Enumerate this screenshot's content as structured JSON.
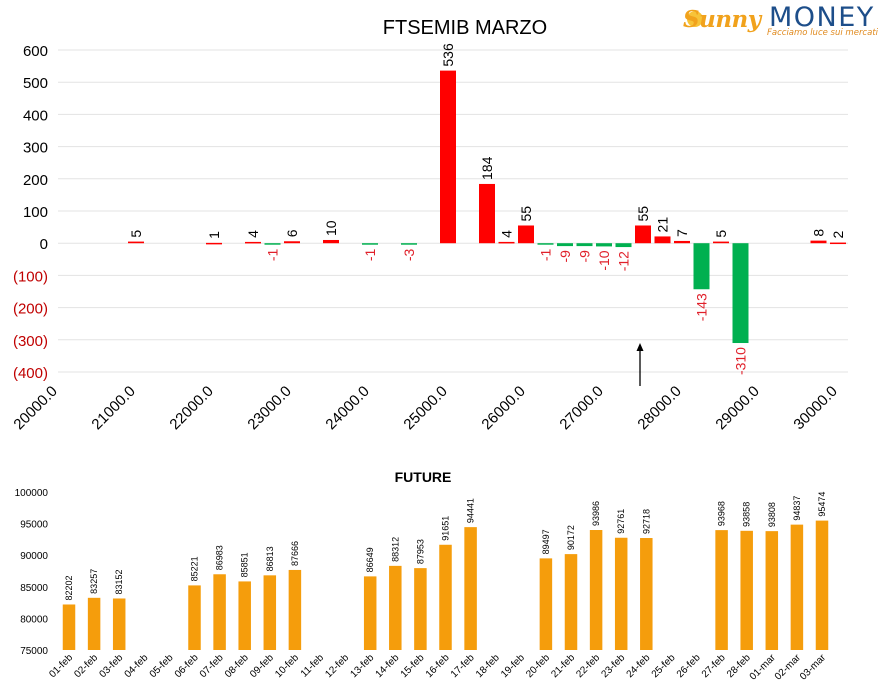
{
  "logo": {
    "brand_left": "Sunny",
    "brand_right": "MONEY",
    "tagline": "Facciamo luce sui mercati"
  },
  "colors": {
    "positive": "#ff0000",
    "negative": "#00b050",
    "future_bar": "#f59d0c",
    "negative_label": "#e0202a",
    "grid": "#e3e3e3"
  },
  "chart_data": [
    {
      "type": "bar",
      "title": "FTSEMIB MARZO",
      "x_tick_labels": [
        "20000.0",
        "21000.0",
        "22000.0",
        "23000.0",
        "24000.0",
        "25000.0",
        "26000.0",
        "27000.0",
        "28000.0",
        "29000.0",
        "30000.0"
      ],
      "xlim": [
        20000,
        30000
      ],
      "ylim": [
        -400,
        600
      ],
      "y_tick_values": [
        600,
        500,
        400,
        300,
        200,
        100,
        0,
        -100,
        -200,
        -300,
        -400
      ],
      "y_tick_labels": [
        "600",
        "500",
        "400",
        "300",
        "200",
        "100",
        "0",
        "(100)",
        "(200)",
        "(300)",
        "(400)"
      ],
      "grid": true,
      "annotation": "arrow at strike 27500 pointing upward",
      "arrow_x": 27500,
      "bars": [
        {
          "x": 21000,
          "value": 5,
          "label": "5"
        },
        {
          "x": 22000,
          "value": 1,
          "label": "1"
        },
        {
          "x": 22500,
          "value": 4,
          "label": "4"
        },
        {
          "x": 22750,
          "value": -1,
          "label": "-1"
        },
        {
          "x": 23000,
          "value": 6,
          "label": "6"
        },
        {
          "x": 23500,
          "value": 10,
          "label": "10"
        },
        {
          "x": 24000,
          "value": -1,
          "label": "-1"
        },
        {
          "x": 24500,
          "value": -3,
          "label": "-3"
        },
        {
          "x": 25000,
          "value": 536,
          "label": "536"
        },
        {
          "x": 25500,
          "value": 184,
          "label": "184"
        },
        {
          "x": 25750,
          "value": 4,
          "label": "4"
        },
        {
          "x": 26000,
          "value": 55,
          "label": "55"
        },
        {
          "x": 26250,
          "value": -1,
          "label": "-1"
        },
        {
          "x": 26500,
          "value": -9,
          "label": "-9"
        },
        {
          "x": 26750,
          "value": -9,
          "label": "-9"
        },
        {
          "x": 27000,
          "value": -10,
          "label": "-10"
        },
        {
          "x": 27250,
          "value": -12,
          "label": "-12"
        },
        {
          "x": 27500,
          "value": 55,
          "label": "55"
        },
        {
          "x": 27750,
          "value": 21,
          "label": "21"
        },
        {
          "x": 28000,
          "value": 7,
          "label": "7"
        },
        {
          "x": 28250,
          "value": -143,
          "label": "-143"
        },
        {
          "x": 28500,
          "value": 5,
          "label": "5"
        },
        {
          "x": 28750,
          "value": -310,
          "label": "-310"
        },
        {
          "x": 29750,
          "value": 8,
          "label": "8"
        },
        {
          "x": 30000,
          "value": 2,
          "label": "2"
        }
      ]
    },
    {
      "type": "bar",
      "title": "FUTURE",
      "ylim": [
        75000,
        100000
      ],
      "y_tick_labels": [
        "100000",
        "95000",
        "90000",
        "85000",
        "80000",
        "75000"
      ],
      "grid": false,
      "categories": [
        "01-feb",
        "02-feb",
        "03-feb",
        "04-feb",
        "05-feb",
        "06-feb",
        "07-feb",
        "08-feb",
        "09-feb",
        "10-feb",
        "11-feb",
        "12-feb",
        "13-feb",
        "14-feb",
        "15-feb",
        "16-feb",
        "17-feb",
        "18-feb",
        "19-feb",
        "20-feb",
        "21-feb",
        "22-feb",
        "23-feb",
        "24-feb",
        "25-feb",
        "26-feb",
        "27-feb",
        "28-feb",
        "01-mar",
        "02-mar",
        "03-mar"
      ],
      "values": [
        82202,
        83257,
        83152,
        null,
        null,
        85221,
        86983,
        85851,
        86813,
        87666,
        null,
        null,
        86649,
        88312,
        87953,
        91651,
        94441,
        null,
        null,
        89497,
        90172,
        93986,
        92761,
        92718,
        null,
        null,
        93968,
        93858,
        93808,
        94837,
        95474
      ]
    }
  ]
}
